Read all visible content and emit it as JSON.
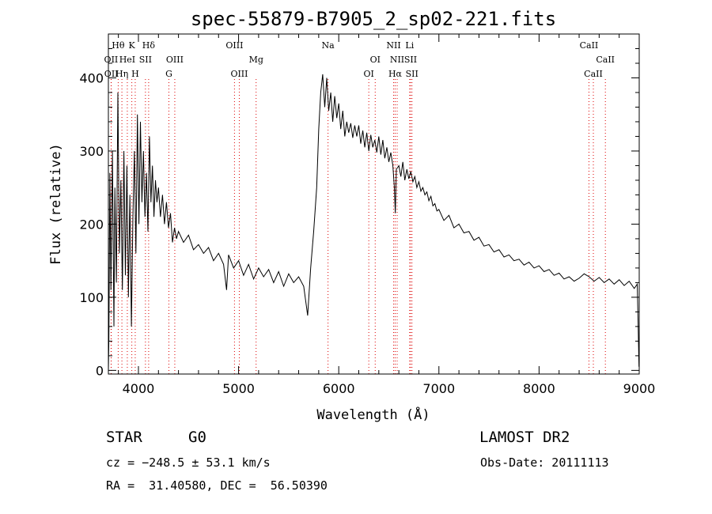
{
  "chart_data": {
    "type": "line",
    "title": "spec-55879-B7905_2_sp02-221.fits",
    "xlabel": "Wavelength (Å)",
    "ylabel": "Flux (relative)",
    "xlim": [
      3700,
      9000
    ],
    "ylim": [
      -5,
      460
    ],
    "xticks": [
      4000,
      5000,
      6000,
      7000,
      8000,
      9000
    ],
    "yticks": [
      0,
      100,
      200,
      300,
      400
    ],
    "grid": false,
    "series": [
      {
        "color": "#000000",
        "points": [
          [
            3700,
            0
          ],
          [
            3705,
            40
          ],
          [
            3715,
            270
          ],
          [
            3725,
            110
          ],
          [
            3740,
            300
          ],
          [
            3755,
            60
          ],
          [
            3765,
            250
          ],
          [
            3780,
            120
          ],
          [
            3795,
            380
          ],
          [
            3810,
            160
          ],
          [
            3825,
            260
          ],
          [
            3840,
            110
          ],
          [
            3855,
            300
          ],
          [
            3870,
            130
          ],
          [
            3885,
            280
          ],
          [
            3900,
            100
          ],
          [
            3915,
            240
          ],
          [
            3930,
            60
          ],
          [
            3945,
            210
          ],
          [
            3960,
            300
          ],
          [
            3975,
            160
          ],
          [
            3990,
            350
          ],
          [
            4005,
            200
          ],
          [
            4020,
            340
          ],
          [
            4035,
            230
          ],
          [
            4050,
            300
          ],
          [
            4065,
            210
          ],
          [
            4080,
            270
          ],
          [
            4095,
            190
          ],
          [
            4110,
            320
          ],
          [
            4125,
            230
          ],
          [
            4140,
            280
          ],
          [
            4155,
            210
          ],
          [
            4170,
            260
          ],
          [
            4185,
            230
          ],
          [
            4200,
            250
          ],
          [
            4220,
            210
          ],
          [
            4240,
            240
          ],
          [
            4260,
            200
          ],
          [
            4280,
            230
          ],
          [
            4300,
            195
          ],
          [
            4320,
            215
          ],
          [
            4340,
            175
          ],
          [
            4360,
            195
          ],
          [
            4380,
            180
          ],
          [
            4400,
            190
          ],
          [
            4450,
            175
          ],
          [
            4500,
            185
          ],
          [
            4550,
            165
          ],
          [
            4600,
            172
          ],
          [
            4650,
            160
          ],
          [
            4700,
            168
          ],
          [
            4750,
            150
          ],
          [
            4800,
            160
          ],
          [
            4850,
            145
          ],
          [
            4880,
            110
          ],
          [
            4900,
            158
          ],
          [
            4950,
            140
          ],
          [
            5000,
            150
          ],
          [
            5050,
            130
          ],
          [
            5100,
            145
          ],
          [
            5150,
            125
          ],
          [
            5200,
            140
          ],
          [
            5250,
            128
          ],
          [
            5300,
            138
          ],
          [
            5350,
            120
          ],
          [
            5400,
            135
          ],
          [
            5450,
            115
          ],
          [
            5500,
            132
          ],
          [
            5550,
            120
          ],
          [
            5600,
            128
          ],
          [
            5650,
            115
          ],
          [
            5690,
            75
          ],
          [
            5720,
            140
          ],
          [
            5750,
            190
          ],
          [
            5780,
            250
          ],
          [
            5800,
            330
          ],
          [
            5820,
            380
          ],
          [
            5840,
            405
          ],
          [
            5860,
            360
          ],
          [
            5880,
            400
          ],
          [
            5900,
            355
          ],
          [
            5920,
            380
          ],
          [
            5940,
            340
          ],
          [
            5960,
            375
          ],
          [
            5980,
            345
          ],
          [
            6000,
            365
          ],
          [
            6020,
            330
          ],
          [
            6040,
            355
          ],
          [
            6060,
            320
          ],
          [
            6080,
            340
          ],
          [
            6100,
            325
          ],
          [
            6120,
            338
          ],
          [
            6140,
            318
          ],
          [
            6160,
            335
          ],
          [
            6180,
            320
          ],
          [
            6200,
            335
          ],
          [
            6220,
            310
          ],
          [
            6240,
            328
          ],
          [
            6260,
            305
          ],
          [
            6280,
            325
          ],
          [
            6300,
            300
          ],
          [
            6320,
            322
          ],
          [
            6340,
            305
          ],
          [
            6360,
            315
          ],
          [
            6380,
            298
          ],
          [
            6400,
            320
          ],
          [
            6420,
            295
          ],
          [
            6440,
            315
          ],
          [
            6460,
            290
          ],
          [
            6480,
            305
          ],
          [
            6500,
            285
          ],
          [
            6520,
            298
          ],
          [
            6540,
            280
          ],
          [
            6555,
            250
          ],
          [
            6565,
            215
          ],
          [
            6575,
            275
          ],
          [
            6600,
            280
          ],
          [
            6620,
            265
          ],
          [
            6640,
            285
          ],
          [
            6660,
            260
          ],
          [
            6680,
            275
          ],
          [
            6700,
            262
          ],
          [
            6720,
            272
          ],
          [
            6740,
            258
          ],
          [
            6760,
            265
          ],
          [
            6780,
            250
          ],
          [
            6800,
            258
          ],
          [
            6820,
            245
          ],
          [
            6840,
            250
          ],
          [
            6860,
            240
          ],
          [
            6880,
            244
          ],
          [
            6900,
            232
          ],
          [
            6920,
            238
          ],
          [
            6940,
            225
          ],
          [
            6960,
            228
          ],
          [
            6980,
            218
          ],
          [
            7000,
            220
          ],
          [
            7050,
            205
          ],
          [
            7100,
            212
          ],
          [
            7150,
            195
          ],
          [
            7200,
            200
          ],
          [
            7250,
            188
          ],
          [
            7300,
            190
          ],
          [
            7350,
            178
          ],
          [
            7400,
            182
          ],
          [
            7450,
            170
          ],
          [
            7500,
            172
          ],
          [
            7550,
            162
          ],
          [
            7600,
            165
          ],
          [
            7650,
            155
          ],
          [
            7700,
            158
          ],
          [
            7750,
            150
          ],
          [
            7800,
            152
          ],
          [
            7850,
            144
          ],
          [
            7900,
            148
          ],
          [
            7950,
            140
          ],
          [
            8000,
            143
          ],
          [
            8050,
            135
          ],
          [
            8100,
            138
          ],
          [
            8150,
            130
          ],
          [
            8200,
            133
          ],
          [
            8250,
            125
          ],
          [
            8300,
            128
          ],
          [
            8350,
            122
          ],
          [
            8400,
            126
          ],
          [
            8450,
            132
          ],
          [
            8500,
            128
          ],
          [
            8550,
            122
          ],
          [
            8600,
            127
          ],
          [
            8650,
            120
          ],
          [
            8700,
            125
          ],
          [
            8750,
            118
          ],
          [
            8800,
            124
          ],
          [
            8850,
            116
          ],
          [
            8900,
            122
          ],
          [
            8950,
            112
          ],
          [
            8980,
            118
          ],
          [
            8990,
            60
          ],
          [
            8998,
            5
          ]
        ]
      }
    ],
    "line_markers": {
      "color": "#dd0000",
      "rows": [
        [
          {
            "label": "Hθ",
            "x": 3798
          },
          {
            "label": "K",
            "x": 3934
          },
          {
            "label": "Hδ",
            "x": 4102
          },
          {
            "label": "OIII",
            "x": 4959
          },
          {
            "label": "Na",
            "x": 5893
          },
          {
            "label": "NII",
            "x": 6548
          },
          {
            "label": "Li",
            "x": 6708
          },
          {
            "label": "CaII",
            "x": 8498
          }
        ],
        [
          {
            "label": "OII",
            "x": 3727
          },
          {
            "label": "HeI",
            "x": 3889
          },
          {
            "label": "SII",
            "x": 4070
          },
          {
            "label": "OIII",
            "x": 4363
          },
          {
            "label": "Mg",
            "x": 5175
          },
          {
            "label": "OI",
            "x": 6364
          },
          {
            "label": "NII",
            "x": 6583
          },
          {
            "label": "SII",
            "x": 6717
          },
          {
            "label": "CaII",
            "x": 8662
          }
        ],
        [
          {
            "label": "OII",
            "x": 3729
          },
          {
            "label": "Hη",
            "x": 3835
          },
          {
            "label": "H",
            "x": 3968
          },
          {
            "label": "G",
            "x": 4304
          },
          {
            "label": "OIII",
            "x": 5007
          },
          {
            "label": "OI",
            "x": 6300
          },
          {
            "label": "Hα",
            "x": 6563
          },
          {
            "label": "SII",
            "x": 6731
          },
          {
            "label": "CaII",
            "x": 8542
          }
        ]
      ]
    }
  },
  "info": {
    "object_type": "STAR",
    "subclass": "G0",
    "survey": "LAMOST DR2",
    "redshift": "cz = −248.5 ± 53.1 km/s",
    "obs_date": "Obs-Date: 20111113",
    "coords": "RA =  31.40580, DEC =  56.50390"
  }
}
